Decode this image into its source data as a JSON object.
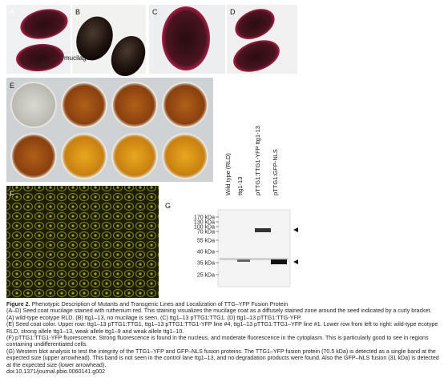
{
  "panels": {
    "a": "A",
    "b": "B",
    "c": "C",
    "d": "D",
    "e": "E",
    "f": "F",
    "g": "G"
  },
  "annotation": "mucilage",
  "lanes": [
    "Wild type (RLD)",
    "ttg1-13",
    "pTTG1:TTG1-YFP ttg1-13",
    "pTTG1:GFP-NLS"
  ],
  "markers": [
    "170 kDa",
    "130 kDa",
    "100 kDa",
    "70 kDa",
    "55 kDa",
    "40 kDa",
    "35 kDa",
    "25 kDa"
  ],
  "caption": {
    "label": "Figure 2.",
    "heading": "Phenotypic Description of Mutants and Transgenic Lines and Localization of TTG–YFP Fusion Protein",
    "paragraphs": [
      "(A–D) Seed coat mucilage stained with ruthenium red. This staining visualizes the mucilage coat as a diffusely stained zone around the seed indicated by a curly bracket. (A) wild-type ecotype RLD. (B) ttg1–13, no mucilage is seen. (C) ttg1–13 pTTG1:TTG1. (D) ttg1–13 pTTG1:TTG-YFP.",
      "(E) Seed coat color. Upper row: ttg1–13 pTTG1:TTG1, ttg1–13 pTTG1:TTG1-YFP line #4, ttg1–13 pTTG1:TTG1–YFP line #1. Lower row from left to right: wild-type ecotype RLD, strong allele ttg1–13, weak allele ttg1–9 and weak allele ttg1–10.",
      "(F) pTTG1:TTG1-YFP fluorescence. Strong fluorescence is found in the nucleus, and moderate fluorescence in the cytoplasm. This is particularly good to see in regions containing undifferentiated cells.",
      "(G) Western blot analysis to test the integrity of the TTG1–YFP and GFP–NLS fusion proteins. The TTG1–YFP fusion protein (70.5 kDa) is detected as a single band at the expected size (upper arrowhead). This band is not seen in the control lane ttg1–13, and no degradation products were found. Also the GFP–NLS fusion (31 kDa) is detected at the expected size (lower arrowhead)."
    ],
    "doi": "doi:10.1371/journal.pbio.0060141.g002"
  }
}
